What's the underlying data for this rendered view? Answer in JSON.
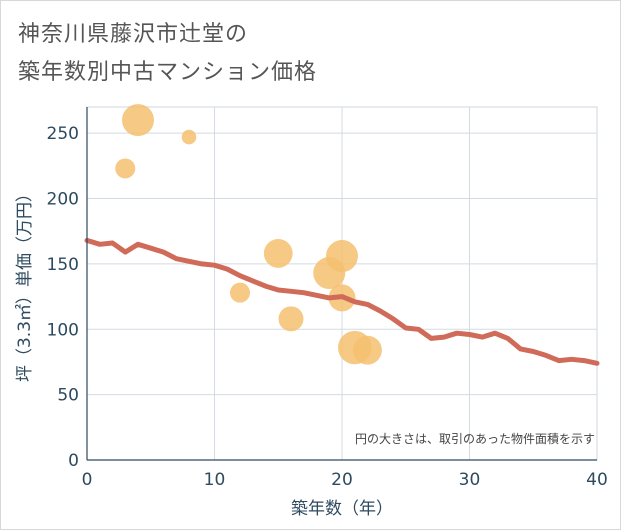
{
  "title_line1": "神奈川県藤沢市辻堂の",
  "title_line2": "築年数別中古マンション価格",
  "chart_data": {
    "type": "scatter",
    "title": "神奈川県藤沢市辻堂の築年数別中古マンション価格",
    "xlabel": "築年数（年）",
    "ylabel": "坪（3.3㎡）単価（万円）",
    "xlim": [
      0,
      40
    ],
    "ylim": [
      0,
      270
    ],
    "xticks": [
      0,
      10,
      20,
      30,
      40
    ],
    "yticks": [
      0,
      50,
      100,
      150,
      200,
      250
    ],
    "grid": true,
    "note": "円の大きさは、取引のあった物件面積を示す",
    "bubble_color": "#f5c06f",
    "line_color": "#d06a59",
    "bubbles": [
      {
        "x": 3,
        "y": 223,
        "size": 1
      },
      {
        "x": 4,
        "y": 260,
        "size": 4
      },
      {
        "x": 8,
        "y": 247,
        "size": 0.3
      },
      {
        "x": 12,
        "y": 128,
        "size": 1
      },
      {
        "x": 15,
        "y": 158,
        "size": 3
      },
      {
        "x": 16,
        "y": 108,
        "size": 2
      },
      {
        "x": 19,
        "y": 143,
        "size": 4
      },
      {
        "x": 20,
        "y": 156,
        "size": 4
      },
      {
        "x": 20,
        "y": 124,
        "size": 2.5
      },
      {
        "x": 21,
        "y": 86,
        "size": 4.5
      },
      {
        "x": 22,
        "y": 84,
        "size": 3
      }
    ],
    "trend_line": {
      "x": [
        0,
        1,
        2,
        3,
        4,
        5,
        6,
        7,
        8,
        9,
        10,
        11,
        12,
        13,
        14,
        15,
        16,
        17,
        18,
        19,
        20,
        21,
        22,
        23,
        24,
        25,
        26,
        27,
        28,
        29,
        30,
        31,
        32,
        33,
        34,
        35,
        36,
        37,
        38,
        39,
        40
      ],
      "y": [
        168,
        165,
        166,
        159,
        165,
        162,
        159,
        154,
        152,
        150,
        149,
        146,
        141,
        137,
        133,
        130,
        129,
        128,
        126,
        124,
        125,
        121,
        119,
        114,
        108,
        101,
        100,
        93,
        94,
        97,
        96,
        94,
        97,
        93,
        85,
        83,
        80,
        76,
        77,
        76,
        74
      ]
    }
  }
}
